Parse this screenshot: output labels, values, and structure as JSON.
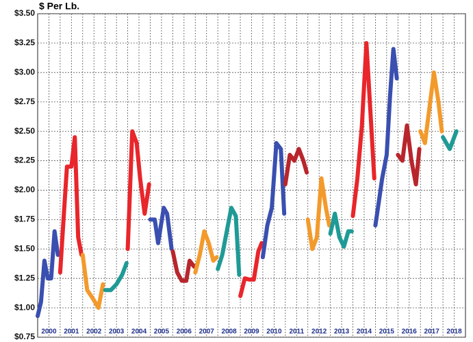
{
  "chart_data": {
    "type": "line",
    "y_label": "$ Per Lb.",
    "categories": [
      "2000",
      "2001",
      "2002",
      "2003",
      "2004",
      "2005",
      "2006",
      "2007",
      "2008",
      "2009",
      "2010",
      "2011",
      "2012",
      "2013",
      "2014",
      "2015",
      "2016",
      "2017",
      "2018"
    ],
    "xlim": [
      2000,
      2019
    ],
    "ylim": [
      0.75,
      3.5
    ],
    "yticks": [
      {
        "value": 0.75,
        "label": "$0.75"
      },
      {
        "value": 1.0,
        "label": "$1.00"
      },
      {
        "value": 1.25,
        "label": "$1.25"
      },
      {
        "value": 1.5,
        "label": "$1.50"
      },
      {
        "value": 1.75,
        "label": "$1.75"
      },
      {
        "value": 2.0,
        "label": "$2.00"
      },
      {
        "value": 2.25,
        "label": "$2.25"
      },
      {
        "value": 2.5,
        "label": "$2.50"
      },
      {
        "value": 2.75,
        "label": "$2.75"
      },
      {
        "value": 3.0,
        "label": "$3.00"
      },
      {
        "value": 3.25,
        "label": "$3.25"
      },
      {
        "value": 3.5,
        "label": "$3.50"
      }
    ],
    "grid": true,
    "series": [
      {
        "color": "#3a4fb0",
        "x": [
          2000.0,
          2000.15,
          2000.3,
          2000.45,
          2000.6,
          2000.75,
          2000.9
        ],
        "values": [
          0.93,
          1.05,
          1.4,
          1.25,
          1.25,
          1.65,
          1.45
        ]
      },
      {
        "color": "#e8262b",
        "x": [
          2001.0,
          2001.15,
          2001.3,
          2001.5,
          2001.65,
          2001.8,
          2001.95
        ],
        "values": [
          1.3,
          1.75,
          2.2,
          2.2,
          2.45,
          1.6,
          1.45
        ]
      },
      {
        "color": "#f39a2c",
        "x": [
          2002.0,
          2002.2,
          2002.45,
          2002.7,
          2002.9
        ],
        "values": [
          1.45,
          1.15,
          1.08,
          1.0,
          1.2
        ]
      },
      {
        "color": "#1f9a96",
        "x": [
          2003.0,
          2003.25,
          2003.5,
          2003.75,
          2003.95
        ],
        "values": [
          1.15,
          1.15,
          1.2,
          1.28,
          1.38
        ]
      },
      {
        "color": "#e8262b",
        "x": [
          2004.0,
          2004.2,
          2004.4,
          2004.55,
          2004.75,
          2004.95
        ],
        "values": [
          1.5,
          2.5,
          2.4,
          2.1,
          1.8,
          2.05
        ]
      },
      {
        "color": "#3a4fb0",
        "x": [
          2005.0,
          2005.2,
          2005.35,
          2005.6,
          2005.75,
          2005.95
        ],
        "values": [
          1.75,
          1.75,
          1.55,
          1.85,
          1.8,
          1.5
        ]
      },
      {
        "color": "#b8262c",
        "x": [
          2006.0,
          2006.2,
          2006.4,
          2006.6,
          2006.75,
          2006.95
        ],
        "values": [
          1.48,
          1.3,
          1.23,
          1.23,
          1.4,
          1.35
        ]
      },
      {
        "color": "#f39a2c",
        "x": [
          2007.0,
          2007.2,
          2007.4,
          2007.6,
          2007.8,
          2007.95
        ],
        "values": [
          1.3,
          1.45,
          1.65,
          1.55,
          1.4,
          1.43
        ]
      },
      {
        "color": "#1f9a96",
        "x": [
          2008.0,
          2008.2,
          2008.4,
          2008.6,
          2008.8,
          2008.95
        ],
        "values": [
          1.33,
          1.45,
          1.65,
          1.85,
          1.78,
          1.28
        ]
      },
      {
        "color": "#e8262b",
        "x": [
          2009.0,
          2009.2,
          2009.4,
          2009.6,
          2009.8,
          2009.95
        ],
        "values": [
          1.1,
          1.25,
          1.24,
          1.24,
          1.48,
          1.55
        ]
      },
      {
        "color": "#3a4fb0",
        "x": [
          2010.0,
          2010.2,
          2010.4,
          2010.6,
          2010.8,
          2010.95
        ],
        "values": [
          1.43,
          1.7,
          1.85,
          2.4,
          2.35,
          1.8
        ]
      },
      {
        "color": "#b8262c",
        "x": [
          2011.0,
          2011.2,
          2011.4,
          2011.6,
          2011.8,
          2011.95
        ],
        "values": [
          2.05,
          2.3,
          2.25,
          2.35,
          2.25,
          2.15
        ]
      },
      {
        "color": "#f39a2c",
        "x": [
          2012.0,
          2012.2,
          2012.4,
          2012.6,
          2012.8,
          2012.95
        ],
        "values": [
          1.75,
          1.5,
          1.6,
          2.1,
          1.85,
          1.7
        ]
      },
      {
        "color": "#1f9a96",
        "x": [
          2013.0,
          2013.2,
          2013.4,
          2013.6,
          2013.8,
          2013.95
        ],
        "values": [
          1.63,
          1.8,
          1.6,
          1.52,
          1.65,
          1.65
        ]
      },
      {
        "color": "#e8262b",
        "x": [
          2014.0,
          2014.2,
          2014.4,
          2014.6,
          2014.8,
          2014.95
        ],
        "values": [
          1.78,
          2.1,
          2.55,
          3.25,
          2.6,
          2.1
        ]
      },
      {
        "color": "#3a4fb0",
        "x": [
          2015.0,
          2015.15,
          2015.3,
          2015.5,
          2015.65,
          2015.8,
          2015.95
        ],
        "values": [
          1.7,
          1.9,
          2.1,
          2.3,
          2.8,
          3.2,
          2.95
        ]
      },
      {
        "color": "#b8262c",
        "x": [
          2016.0,
          2016.2,
          2016.4,
          2016.6,
          2016.8,
          2016.95
        ],
        "values": [
          2.3,
          2.25,
          2.55,
          2.25,
          2.05,
          2.35
        ]
      },
      {
        "color": "#f39a2c",
        "x": [
          2017.0,
          2017.2,
          2017.4,
          2017.6,
          2017.8,
          2017.95
        ],
        "values": [
          2.5,
          2.4,
          2.7,
          3.0,
          2.75,
          2.5
        ]
      },
      {
        "color": "#1f9a96",
        "x": [
          2018.0,
          2018.3,
          2018.6
        ],
        "values": [
          2.45,
          2.35,
          2.5
        ]
      }
    ]
  }
}
